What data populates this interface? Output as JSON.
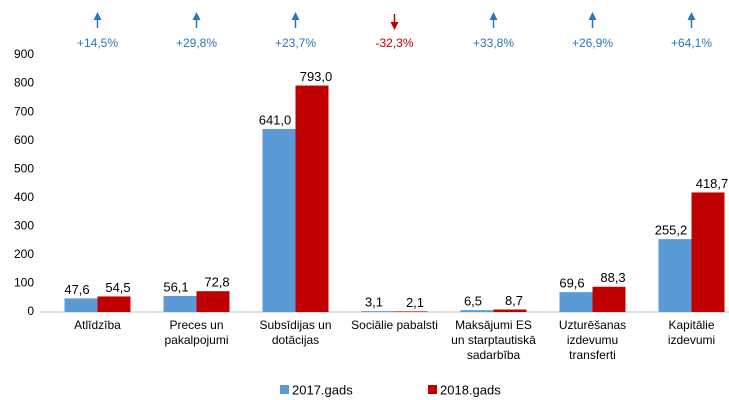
{
  "chart_data": {
    "type": "bar",
    "categories": [
      "Atlīdzība",
      "Preces un\npakalpojumi",
      "Subsīdijas un\ndotācijas",
      "Sociālie pabalsti",
      "Maksājumi ES\nun starptautiskā\nsadarbība",
      "Uzturēšanas\nizdevumu\ntransferti",
      "Kapitālie\nizdevumi"
    ],
    "series": [
      {
        "name": "2017.gads",
        "color": "#5b9bd5",
        "values": [
          47.6,
          56.1,
          641.0,
          3.1,
          6.5,
          69.6,
          255.2
        ],
        "value_labels": [
          "47,6",
          "56,1",
          "641,0",
          "3,1",
          "6,5",
          "69,6",
          "255,2"
        ]
      },
      {
        "name": "2018.gads",
        "color": "#c00000",
        "values": [
          54.5,
          72.8,
          793.0,
          2.1,
          8.7,
          88.3,
          418.7
        ],
        "value_labels": [
          "54,5",
          "72,8",
          "793,0",
          "2,1",
          "8,7",
          "88,3",
          "418,7"
        ]
      }
    ],
    "annotations": [
      {
        "label": "+14,5%",
        "direction": "up",
        "color": "#2e75b6"
      },
      {
        "label": "+29,8%",
        "direction": "up",
        "color": "#2e75b6"
      },
      {
        "label": "+23,7%",
        "direction": "up",
        "color": "#2e75b6"
      },
      {
        "label": "-32,3%",
        "direction": "down",
        "color": "#c00000"
      },
      {
        "label": "+33,8%",
        "direction": "up",
        "color": "#2e75b6"
      },
      {
        "label": "+26,9%",
        "direction": "up",
        "color": "#2e75b6"
      },
      {
        "label": "+64,1%",
        "direction": "up",
        "color": "#2e75b6"
      }
    ],
    "ylim": [
      0,
      900
    ],
    "yticks": [
      0,
      100,
      200,
      300,
      400,
      500,
      600,
      700,
      800,
      900
    ],
    "grid": false,
    "legend": "bottom"
  }
}
